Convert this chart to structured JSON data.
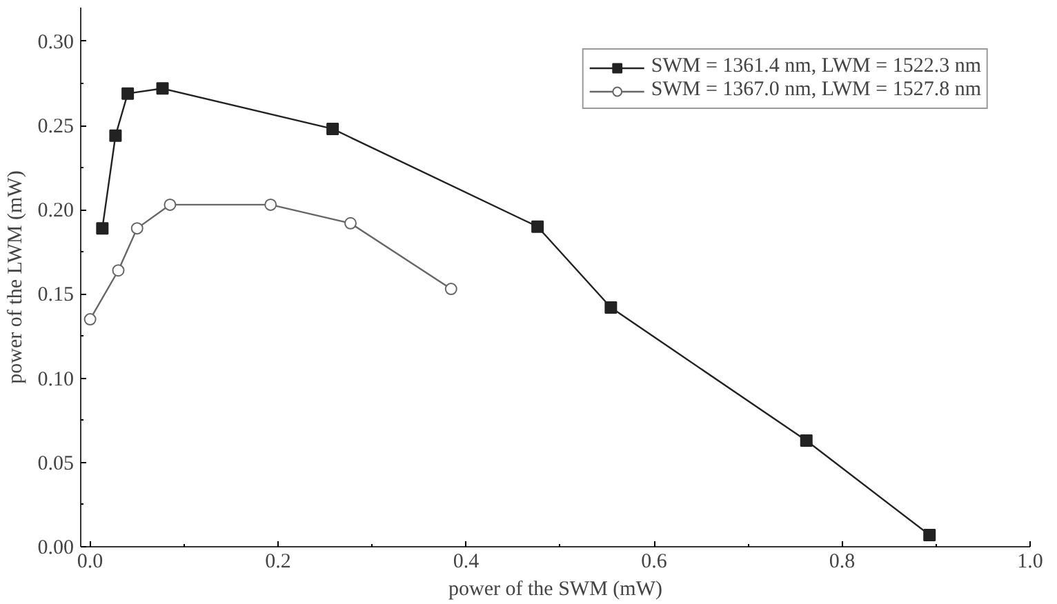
{
  "chart_data": {
    "type": "line",
    "xlabel": "power of the SWM (mW)",
    "ylabel": "power of the LWM (mW)",
    "xlim": [
      -0.01,
      1.0
    ],
    "ylim": [
      0,
      0.32
    ],
    "xticks": [
      {
        "value": 0,
        "label": "0.0"
      },
      {
        "value": 0.2,
        "label": "0.2"
      },
      {
        "value": 0.4,
        "label": "0.4"
      },
      {
        "value": 0.6,
        "label": "0.6"
      },
      {
        "value": 0.8,
        "label": "0.8"
      },
      {
        "value": 1.0,
        "label": "1.0"
      }
    ],
    "yticks": [
      {
        "value": 0,
        "label": "0.00"
      },
      {
        "value": 0.05,
        "label": "0.05"
      },
      {
        "value": 0.1,
        "label": "0.10"
      },
      {
        "value": 0.15,
        "label": "0.15"
      },
      {
        "value": 0.2,
        "label": "0.20"
      },
      {
        "value": 0.25,
        "label": "0.25"
      },
      {
        "value": 0.3,
        "label": "0.30"
      }
    ],
    "grid": false,
    "legend": "top right",
    "line_style": "solid",
    "series": [
      {
        "name": "SWM = 1361.4 nm, LWM = 1522.3 nm",
        "color": "#222222",
        "marker": "square",
        "x": [
          0.013,
          0.027,
          0.04,
          0.077,
          0.258,
          0.476,
          0.554,
          0.762,
          0.893
        ],
        "values": [
          0.189,
          0.244,
          0.269,
          0.272,
          0.248,
          0.19,
          0.142,
          0.063,
          0.007
        ]
      },
      {
        "name": "SWM = 1367.0 nm, LWM = 1527.8 nm",
        "color": "#666666",
        "marker": "circle",
        "x": [
          0.0,
          0.03,
          0.05,
          0.085,
          0.192,
          0.277,
          0.384
        ],
        "values": [
          0.135,
          0.164,
          0.189,
          0.203,
          0.203,
          0.192,
          0.153
        ]
      }
    ]
  }
}
